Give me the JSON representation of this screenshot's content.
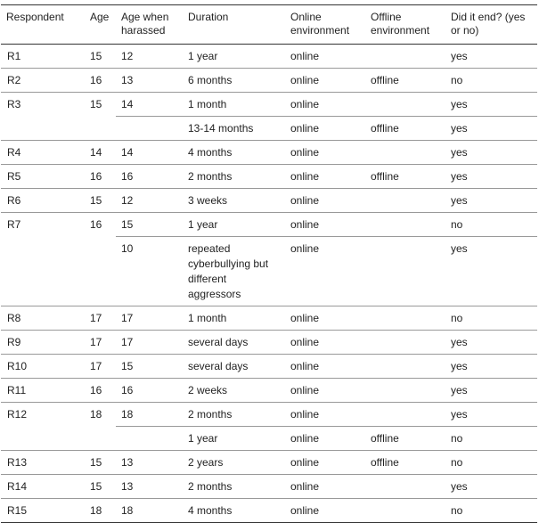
{
  "headers": [
    "Respondent",
    "Age",
    "Age when harassed",
    "Duration",
    "Online environment",
    "Offline environment",
    "Did it end? (yes or no)"
  ],
  "respondents": [
    {
      "id": "R1",
      "age": "15",
      "entries": [
        {
          "age_harassed": "12",
          "duration": "1 year",
          "online": "online",
          "offline": "",
          "ended": "yes"
        }
      ]
    },
    {
      "id": "R2",
      "age": "16",
      "entries": [
        {
          "age_harassed": "13",
          "duration": "6 months",
          "online": "online",
          "offline": "offline",
          "ended": "no"
        }
      ]
    },
    {
      "id": "R3",
      "age": "15",
      "entries": [
        {
          "age_harassed": "14",
          "duration": "1 month",
          "online": "online",
          "offline": "",
          "ended": "yes"
        },
        {
          "age_harassed": "",
          "duration": "13-14 months",
          "online": "online",
          "offline": "offline",
          "ended": "yes"
        }
      ]
    },
    {
      "id": "R4",
      "age": "14",
      "entries": [
        {
          "age_harassed": "14",
          "duration": "4 months",
          "online": "online",
          "offline": "",
          "ended": "yes"
        }
      ]
    },
    {
      "id": "R5",
      "age": "16",
      "entries": [
        {
          "age_harassed": "16",
          "duration": "2 months",
          "online": "online",
          "offline": "offline",
          "ended": "yes"
        }
      ]
    },
    {
      "id": "R6",
      "age": "15",
      "entries": [
        {
          "age_harassed": "12",
          "duration": "3 weeks",
          "online": "online",
          "offline": "",
          "ended": "yes"
        }
      ]
    },
    {
      "id": "R7",
      "age": "16",
      "entries": [
        {
          "age_harassed": "15",
          "duration": "1 year",
          "online": "online",
          "offline": "",
          "ended": "no"
        },
        {
          "age_harassed": "10",
          "duration": "repeated cyberbullying but different aggressors",
          "online": "online",
          "offline": "",
          "ended": "yes"
        }
      ]
    },
    {
      "id": "R8",
      "age": "17",
      "entries": [
        {
          "age_harassed": "17",
          "duration": "1 month",
          "online": "online",
          "offline": "",
          "ended": "no"
        }
      ]
    },
    {
      "id": "R9",
      "age": "17",
      "entries": [
        {
          "age_harassed": "17",
          "duration": "several days",
          "online": "online",
          "offline": "",
          "ended": "yes"
        }
      ]
    },
    {
      "id": "R10",
      "age": "17",
      "entries": [
        {
          "age_harassed": "15",
          "duration": "several days",
          "online": "online",
          "offline": "",
          "ended": "yes"
        }
      ]
    },
    {
      "id": "R11",
      "age": "16",
      "entries": [
        {
          "age_harassed": "16",
          "duration": "2 weeks",
          "online": "online",
          "offline": "",
          "ended": "yes"
        }
      ]
    },
    {
      "id": "R12",
      "age": "18",
      "entries": [
        {
          "age_harassed": "18",
          "duration": "2 months",
          "online": "online",
          "offline": "",
          "ended": "yes"
        },
        {
          "age_harassed": "",
          "duration": "1 year",
          "online": "online",
          "offline": "offline",
          "ended": "no"
        }
      ]
    },
    {
      "id": "R13",
      "age": "15",
      "entries": [
        {
          "age_harassed": "13",
          "duration": "2 years",
          "online": "online",
          "offline": "offline",
          "ended": "no"
        }
      ]
    },
    {
      "id": "R14",
      "age": "15",
      "entries": [
        {
          "age_harassed": "13",
          "duration": "2 months",
          "online": "online",
          "offline": "",
          "ended": "yes"
        }
      ]
    },
    {
      "id": "R15",
      "age": "18",
      "entries": [
        {
          "age_harassed": "18",
          "duration": "4 months",
          "online": "online",
          "offline": "",
          "ended": "no"
        }
      ]
    }
  ]
}
